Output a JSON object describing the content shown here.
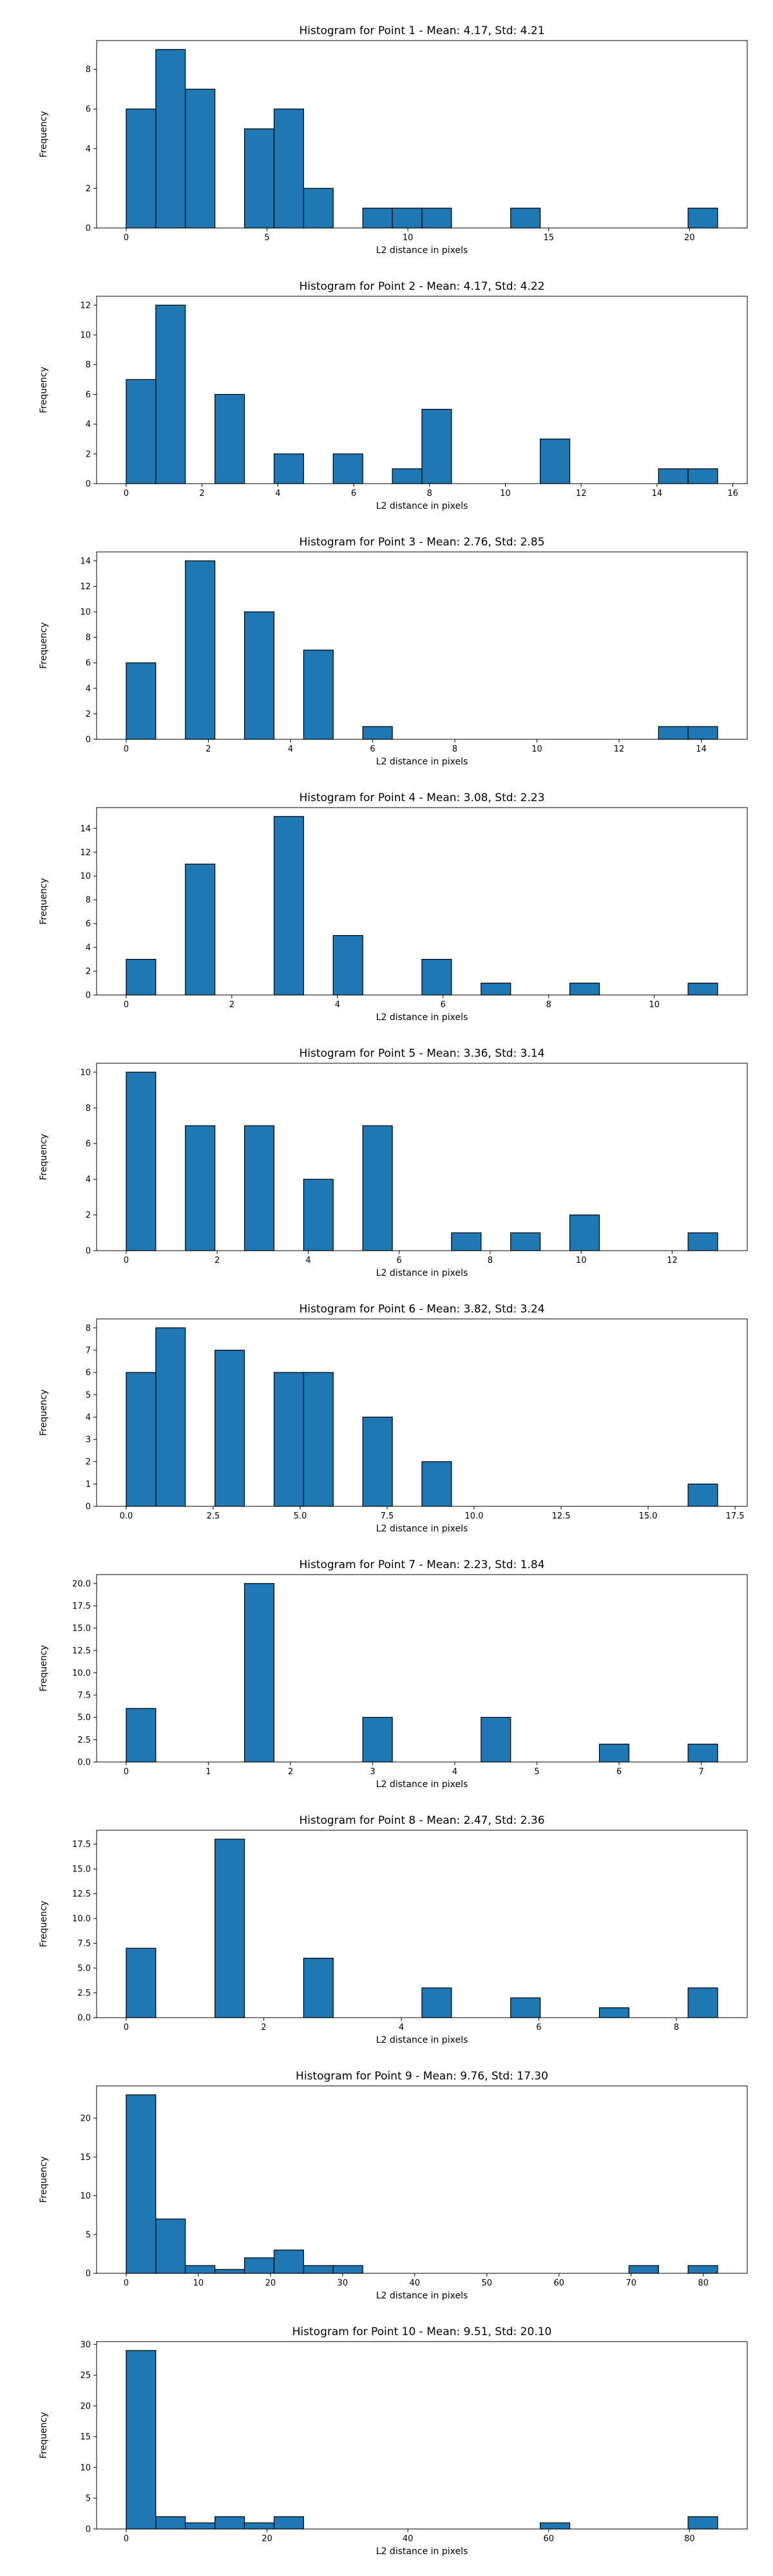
{
  "chart_data": [
    {
      "type": "bar",
      "title": "Histogram for Point 1 - Mean: 4.17, Std: 4.21",
      "xlabel": "L2 distance in pixels",
      "ylabel": "Frequency",
      "xlim": [
        -1.05,
        22.05
      ],
      "ylim": [
        0,
        9.45
      ],
      "xticks": [
        0,
        5,
        10,
        15,
        20
      ],
      "xtick_labels": [
        "0",
        "5",
        "10",
        "15",
        "20"
      ],
      "yticks": [
        0,
        2,
        4,
        6,
        8
      ],
      "ytick_labels": [
        "0",
        "2",
        "4",
        "6",
        "8"
      ],
      "bins": [
        {
          "x0": 0.0,
          "x1": 1.05,
          "value": 6
        },
        {
          "x0": 1.05,
          "x1": 2.1,
          "value": 9
        },
        {
          "x0": 2.1,
          "x1": 3.15,
          "value": 7
        },
        {
          "x0": 4.2,
          "x1": 5.25,
          "value": 5
        },
        {
          "x0": 5.25,
          "x1": 6.3,
          "value": 6
        },
        {
          "x0": 6.3,
          "x1": 7.35,
          "value": 2
        },
        {
          "x0": 8.4,
          "x1": 9.45,
          "value": 1
        },
        {
          "x0": 9.45,
          "x1": 10.5,
          "value": 1
        },
        {
          "x0": 10.5,
          "x1": 11.55,
          "value": 1
        },
        {
          "x0": 13.65,
          "x1": 14.7,
          "value": 1
        },
        {
          "x0": 19.95,
          "x1": 21.0,
          "value": 1
        }
      ]
    },
    {
      "type": "bar",
      "title": "Histogram for Point 2 - Mean: 4.17, Std: 4.22",
      "xlabel": "L2 distance in pixels",
      "ylabel": "Frequency",
      "xlim": [
        -0.78,
        16.38
      ],
      "ylim": [
        0,
        12.6
      ],
      "xticks": [
        0,
        2,
        4,
        6,
        8,
        10,
        12,
        14,
        16
      ],
      "xtick_labels": [
        "0",
        "2",
        "4",
        "6",
        "8",
        "10",
        "12",
        "14",
        "16"
      ],
      "yticks": [
        0,
        2,
        4,
        6,
        8,
        10,
        12
      ],
      "ytick_labels": [
        "0",
        "2",
        "4",
        "6",
        "8",
        "10",
        "12"
      ],
      "bins": [
        {
          "x0": 0.0,
          "x1": 0.78,
          "value": 7
        },
        {
          "x0": 0.78,
          "x1": 1.56,
          "value": 12
        },
        {
          "x0": 2.34,
          "x1": 3.12,
          "value": 6
        },
        {
          "x0": 3.9,
          "x1": 4.68,
          "value": 2
        },
        {
          "x0": 5.46,
          "x1": 6.24,
          "value": 2
        },
        {
          "x0": 7.02,
          "x1": 7.8,
          "value": 1
        },
        {
          "x0": 7.8,
          "x1": 8.58,
          "value": 5
        },
        {
          "x0": 10.92,
          "x1": 11.7,
          "value": 3
        },
        {
          "x0": 14.04,
          "x1": 14.82,
          "value": 1
        },
        {
          "x0": 14.82,
          "x1": 15.6,
          "value": 1
        }
      ]
    },
    {
      "type": "bar",
      "title": "Histogram for Point 3 - Mean: 2.76, Std: 2.85",
      "xlabel": "L2 distance in pixels",
      "ylabel": "Frequency",
      "xlim": [
        -0.72,
        15.12
      ],
      "ylim": [
        0,
        14.7
      ],
      "xticks": [
        0,
        2,
        4,
        6,
        8,
        10,
        12,
        14
      ],
      "xtick_labels": [
        "0",
        "2",
        "4",
        "6",
        "8",
        "10",
        "12",
        "14"
      ],
      "yticks": [
        0,
        2,
        4,
        6,
        8,
        10,
        12,
        14
      ],
      "ytick_labels": [
        "0",
        "2",
        "4",
        "6",
        "8",
        "10",
        "12",
        "14"
      ],
      "bins": [
        {
          "x0": 0.0,
          "x1": 0.72,
          "value": 6
        },
        {
          "x0": 1.44,
          "x1": 2.16,
          "value": 14
        },
        {
          "x0": 2.88,
          "x1": 3.6,
          "value": 10
        },
        {
          "x0": 4.32,
          "x1": 5.04,
          "value": 7
        },
        {
          "x0": 5.76,
          "x1": 6.48,
          "value": 1
        },
        {
          "x0": 12.96,
          "x1": 13.68,
          "value": 1
        },
        {
          "x0": 13.68,
          "x1": 14.4,
          "value": 1
        }
      ]
    },
    {
      "type": "bar",
      "title": "Histogram for Point 4 - Mean: 3.08, Std: 2.23",
      "xlabel": "L2 distance in pixels",
      "ylabel": "Frequency",
      "xlim": [
        -0.56,
        11.76
      ],
      "ylim": [
        0,
        15.75
      ],
      "xticks": [
        0,
        2,
        4,
        6,
        8,
        10
      ],
      "xtick_labels": [
        "0",
        "2",
        "4",
        "6",
        "8",
        "10"
      ],
      "yticks": [
        0,
        2,
        4,
        6,
        8,
        10,
        12,
        14
      ],
      "ytick_labels": [
        "0",
        "2",
        "4",
        "6",
        "8",
        "10",
        "12",
        "14"
      ],
      "bins": [
        {
          "x0": 0.0,
          "x1": 0.56,
          "value": 3
        },
        {
          "x0": 1.12,
          "x1": 1.68,
          "value": 11
        },
        {
          "x0": 2.8,
          "x1": 3.36,
          "value": 15
        },
        {
          "x0": 3.92,
          "x1": 4.48,
          "value": 5
        },
        {
          "x0": 5.6,
          "x1": 6.16,
          "value": 3
        },
        {
          "x0": 6.72,
          "x1": 7.28,
          "value": 1
        },
        {
          "x0": 8.4,
          "x1": 8.96,
          "value": 1
        },
        {
          "x0": 10.64,
          "x1": 11.2,
          "value": 1
        }
      ]
    },
    {
      "type": "bar",
      "title": "Histogram for Point 5 - Mean: 3.36, Std: 3.14",
      "xlabel": "L2 distance in pixels",
      "ylabel": "Frequency",
      "xlim": [
        -0.65,
        13.65
      ],
      "ylim": [
        0,
        10.5
      ],
      "xticks": [
        0,
        2,
        4,
        6,
        8,
        10,
        12
      ],
      "xtick_labels": [
        "0",
        "2",
        "4",
        "6",
        "8",
        "10",
        "12"
      ],
      "yticks": [
        0,
        2,
        4,
        6,
        8,
        10
      ],
      "ytick_labels": [
        "0",
        "2",
        "4",
        "6",
        "8",
        "10"
      ],
      "bins": [
        {
          "x0": 0.0,
          "x1": 0.65,
          "value": 10
        },
        {
          "x0": 1.3,
          "x1": 1.95,
          "value": 7
        },
        {
          "x0": 2.6,
          "x1": 3.25,
          "value": 7
        },
        {
          "x0": 3.9,
          "x1": 4.55,
          "value": 4
        },
        {
          "x0": 5.2,
          "x1": 5.85,
          "value": 7
        },
        {
          "x0": 7.15,
          "x1": 7.8,
          "value": 1
        },
        {
          "x0": 8.45,
          "x1": 9.1,
          "value": 1
        },
        {
          "x0": 9.75,
          "x1": 10.4,
          "value": 2
        },
        {
          "x0": 12.35,
          "x1": 13.0,
          "value": 1
        }
      ]
    },
    {
      "type": "bar",
      "title": "Histogram for Point 6 - Mean: 3.82, Std: 3.24",
      "xlabel": "L2 distance in pixels",
      "ylabel": "Frequency",
      "xlim": [
        -0.85,
        17.85
      ],
      "ylim": [
        0,
        8.4
      ],
      "xticks": [
        0,
        2.5,
        5,
        7.5,
        10,
        12.5,
        15,
        17.5
      ],
      "xtick_labels": [
        "0.0",
        "2.5",
        "5.0",
        "7.5",
        "10.0",
        "12.5",
        "15.0",
        "17.5"
      ],
      "yticks": [
        0,
        1,
        2,
        3,
        4,
        5,
        6,
        7,
        8
      ],
      "ytick_labels": [
        "0",
        "1",
        "2",
        "3",
        "4",
        "5",
        "6",
        "7",
        "8"
      ],
      "bins": [
        {
          "x0": 0.0,
          "x1": 0.85,
          "value": 6
        },
        {
          "x0": 0.85,
          "x1": 1.7,
          "value": 8
        },
        {
          "x0": 2.55,
          "x1": 3.4,
          "value": 7
        },
        {
          "x0": 4.25,
          "x1": 5.1,
          "value": 6
        },
        {
          "x0": 5.1,
          "x1": 5.95,
          "value": 6
        },
        {
          "x0": 6.8,
          "x1": 7.65,
          "value": 4
        },
        {
          "x0": 8.5,
          "x1": 9.35,
          "value": 2
        },
        {
          "x0": 16.15,
          "x1": 17.0,
          "value": 1
        }
      ]
    },
    {
      "type": "bar",
      "title": "Histogram for Point 7 - Mean: 2.23, Std: 1.84",
      "xlabel": "L2 distance in pixels",
      "ylabel": "Frequency",
      "xlim": [
        -0.36,
        7.56
      ],
      "ylim": [
        0,
        21.0
      ],
      "xticks": [
        0,
        1,
        2,
        3,
        4,
        5,
        6,
        7
      ],
      "xtick_labels": [
        "0",
        "1",
        "2",
        "3",
        "4",
        "5",
        "6",
        "7"
      ],
      "yticks": [
        0,
        2.5,
        5,
        7.5,
        10,
        12.5,
        15,
        17.5,
        20
      ],
      "ytick_labels": [
        "0.0",
        "2.5",
        "5.0",
        "7.5",
        "10.0",
        "12.5",
        "15.0",
        "17.5",
        "20.0"
      ],
      "bins": [
        {
          "x0": 0.0,
          "x1": 0.36,
          "value": 6
        },
        {
          "x0": 1.44,
          "x1": 1.8,
          "value": 20
        },
        {
          "x0": 2.88,
          "x1": 3.24,
          "value": 5
        },
        {
          "x0": 4.32,
          "x1": 4.68,
          "value": 5
        },
        {
          "x0": 5.76,
          "x1": 6.12,
          "value": 2
        },
        {
          "x0": 6.84,
          "x1": 7.2,
          "value": 2
        }
      ]
    },
    {
      "type": "bar",
      "title": "Histogram for Point 8 - Mean: 2.47, Std: 2.36",
      "xlabel": "L2 distance in pixels",
      "ylabel": "Frequency",
      "xlim": [
        -0.43,
        9.03
      ],
      "ylim": [
        0,
        18.9
      ],
      "xticks": [
        0,
        2,
        4,
        6,
        8
      ],
      "xtick_labels": [
        "0",
        "2",
        "4",
        "6",
        "8"
      ],
      "yticks": [
        0,
        2.5,
        5,
        7.5,
        10,
        12.5,
        15,
        17.5
      ],
      "ytick_labels": [
        "0.0",
        "2.5",
        "5.0",
        "7.5",
        "10.0",
        "12.5",
        "15.0",
        "17.5"
      ],
      "bins": [
        {
          "x0": 0.0,
          "x1": 0.43,
          "value": 7
        },
        {
          "x0": 1.29,
          "x1": 1.72,
          "value": 18
        },
        {
          "x0": 2.58,
          "x1": 3.01,
          "value": 6
        },
        {
          "x0": 4.3,
          "x1": 4.73,
          "value": 3
        },
        {
          "x0": 5.59,
          "x1": 6.02,
          "value": 2
        },
        {
          "x0": 6.88,
          "x1": 7.31,
          "value": 1
        },
        {
          "x0": 8.17,
          "x1": 8.6,
          "value": 3
        }
      ]
    },
    {
      "type": "bar",
      "title": "Histogram for Point 9 - Mean: 9.76, Std: 17.30",
      "xlabel": "L2 distance in pixels",
      "ylabel": "Frequency",
      "xlim": [
        -4.1,
        86.1
      ],
      "ylim": [
        0,
        24.15
      ],
      "xticks": [
        0,
        10,
        20,
        30,
        40,
        50,
        60,
        70,
        80
      ],
      "xtick_labels": [
        "0",
        "10",
        "20",
        "30",
        "40",
        "50",
        "60",
        "70",
        "80"
      ],
      "yticks": [
        0,
        5,
        10,
        15,
        20
      ],
      "ytick_labels": [
        "0",
        "5",
        "10",
        "15",
        "20"
      ],
      "bins": [
        {
          "x0": 0.0,
          "x1": 4.1,
          "value": 23
        },
        {
          "x0": 4.1,
          "x1": 8.2,
          "value": 7
        },
        {
          "x0": 8.2,
          "x1": 12.3,
          "value": 1
        },
        {
          "x0": 12.3,
          "x1": 16.4,
          "value": 0.5
        },
        {
          "x0": 16.4,
          "x1": 20.5,
          "value": 2
        },
        {
          "x0": 20.5,
          "x1": 24.6,
          "value": 3
        },
        {
          "x0": 24.6,
          "x1": 28.7,
          "value": 1
        },
        {
          "x0": 28.7,
          "x1": 32.8,
          "value": 1
        },
        {
          "x0": 69.7,
          "x1": 73.8,
          "value": 1
        },
        {
          "x0": 77.9,
          "x1": 82.0,
          "value": 1
        }
      ]
    },
    {
      "type": "bar",
      "title": "Histogram for Point 10 - Mean: 9.51, Std: 20.10",
      "xlabel": "L2 distance in pixels",
      "ylabel": "Frequency",
      "xlim": [
        -4.2,
        88.2
      ],
      "ylim": [
        0,
        30.45
      ],
      "xticks": [
        0,
        20,
        40,
        60,
        80
      ],
      "xtick_labels": [
        "0",
        "20",
        "40",
        "60",
        "80"
      ],
      "yticks": [
        0,
        5,
        10,
        15,
        20,
        25,
        30
      ],
      "ytick_labels": [
        "0",
        "5",
        "10",
        "15",
        "20",
        "25",
        "30"
      ],
      "bins": [
        {
          "x0": 0.0,
          "x1": 4.2,
          "value": 29
        },
        {
          "x0": 4.2,
          "x1": 8.4,
          "value": 2
        },
        {
          "x0": 8.4,
          "x1": 12.6,
          "value": 1
        },
        {
          "x0": 12.6,
          "x1": 16.8,
          "value": 2
        },
        {
          "x0": 16.8,
          "x1": 21.0,
          "value": 1
        },
        {
          "x0": 21.0,
          "x1": 25.2,
          "value": 2
        },
        {
          "x0": 58.8,
          "x1": 63.0,
          "value": 1
        },
        {
          "x0": 79.8,
          "x1": 84.0,
          "value": 2
        }
      ]
    }
  ]
}
